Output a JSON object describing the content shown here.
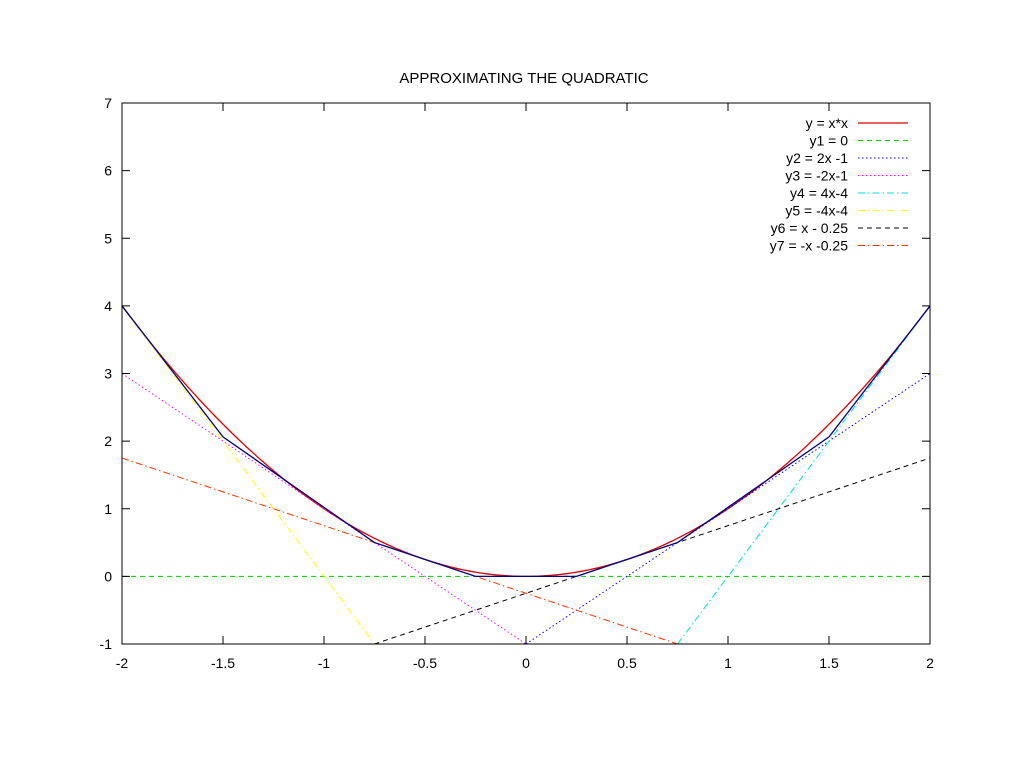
{
  "chart_data": {
    "type": "line",
    "title": "APPROXIMATING THE QUADRATIC",
    "xlabel": "",
    "ylabel": "",
    "xlim": [
      -2,
      2
    ],
    "ylim": [
      -1,
      7
    ],
    "xticks": [
      -2,
      -1.5,
      -1,
      -0.5,
      0,
      0.5,
      1,
      1.5,
      2
    ],
    "xtick_labels": [
      "-2",
      "-1.5",
      "-1",
      "-0.5",
      "0",
      "0.5",
      "1",
      "1.5",
      "2"
    ],
    "yticks": [
      -1,
      0,
      1,
      2,
      3,
      4,
      5,
      6,
      7
    ],
    "ytick_labels": [
      "-1",
      "0",
      "1",
      "2",
      "3",
      "4",
      "5",
      "6",
      "7"
    ],
    "grid": false,
    "legend_position": "top-right",
    "series": [
      {
        "name": "y = x*x",
        "color": "#dd0000",
        "dash": "solid",
        "x_range": [
          -2,
          2
        ],
        "expression": "x*x"
      },
      {
        "name": "y1 = 0",
        "color": "#00cc00",
        "dash": "dashed",
        "x_range": [
          -2,
          2
        ],
        "expression": "0"
      },
      {
        "name": "y2 = 2x -1",
        "color": "#0000ff",
        "dash": "dotted",
        "x_range": [
          0,
          2
        ],
        "expression": "2*x-1"
      },
      {
        "name": "y3 = -2x-1",
        "color": "#ff00ff",
        "dash": "dotted",
        "x_range": [
          -2,
          0
        ],
        "expression": "-2*x-1"
      },
      {
        "name": "y4 = 4x-4",
        "color": "#00dddd",
        "dash": "dashdot",
        "x_range": [
          0.75,
          2
        ],
        "expression": "4*x-4"
      },
      {
        "name": "y5 = -4x-4",
        "color": "#ffff00",
        "dash": "dashdot",
        "x_range": [
          -2,
          -0.75
        ],
        "expression": "-4*x-4"
      },
      {
        "name": "y6 = x - 0.25",
        "color": "#000000",
        "dash": "dashed",
        "x_range": [
          -0.75,
          2
        ],
        "expression": "x-0.25"
      },
      {
        "name": "y7 = -x -0.25",
        "color": "#ff3300",
        "dash": "dashdot",
        "x_range": [
          -2,
          0.75
        ],
        "expression": "-x-0.25"
      }
    ],
    "piecewise_approximation": {
      "color": "#000080",
      "x": [
        -2,
        -1.5,
        -0.75,
        -0.25,
        0.25,
        0.75,
        1.5,
        2
      ],
      "y": [
        4,
        2.0625,
        0.5,
        0,
        0,
        0.5,
        2.0625,
        4
      ]
    }
  }
}
